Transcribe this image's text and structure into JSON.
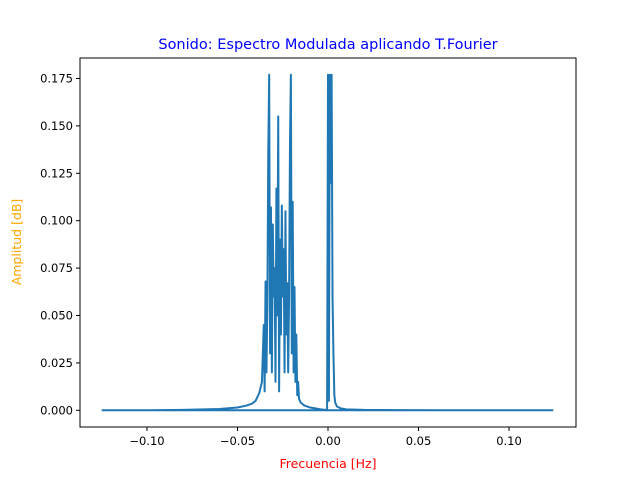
{
  "chart_data": {
    "type": "line",
    "title": "Sonido: Espectro Modulada aplicando T.Fourier",
    "title_color": "#0000ff",
    "xlabel": "Frecuencia [Hz]",
    "xlabel_color": "#ff0000",
    "ylabel": "Amplitud [dB]",
    "ylabel_color": "#ffa500",
    "line_color": "#1f77b4",
    "grid": false,
    "xlim": [
      -0.137,
      0.137
    ],
    "ylim": [
      -0.0088,
      0.1858
    ],
    "x_ticks": [
      -0.1,
      -0.05,
      0.0,
      0.05,
      0.1
    ],
    "x_tick_labels": [
      "−0.10",
      "−0.05",
      "0.00",
      "0.05",
      "0.10"
    ],
    "y_ticks": [
      0.0,
      0.025,
      0.05,
      0.075,
      0.1,
      0.125,
      0.15,
      0.175
    ],
    "y_tick_labels": [
      "0.000",
      "0.025",
      "0.050",
      "0.075",
      "0.100",
      "0.125",
      "0.150",
      "0.175"
    ],
    "series": [
      {
        "x": [
          -0.125,
          -0.1,
          -0.08,
          -0.06,
          -0.05,
          -0.045,
          -0.042,
          -0.04,
          -0.038,
          -0.0365,
          -0.0355,
          -0.035,
          -0.0345,
          -0.034,
          -0.0335,
          -0.033,
          -0.0325,
          -0.032,
          -0.0315,
          -0.031,
          -0.0305,
          -0.03,
          -0.0295,
          -0.029,
          -0.0285,
          -0.028,
          -0.0275,
          -0.027,
          -0.0265,
          -0.026,
          -0.0255,
          -0.025,
          -0.0245,
          -0.024,
          -0.0235,
          -0.023,
          -0.0225,
          -0.022,
          -0.0215,
          -0.021,
          -0.0205,
          -0.02,
          -0.0195,
          -0.019,
          -0.0185,
          -0.018,
          -0.0175,
          -0.017,
          -0.0165,
          -0.016,
          -0.015,
          -0.013,
          -0.01,
          -0.007,
          -0.004,
          -0.002,
          -0.001,
          -0.0005,
          0.0,
          0.0005,
          0.001,
          0.0015,
          0.002,
          0.0025,
          0.003,
          0.0035,
          0.004,
          0.005,
          0.007,
          0.01,
          0.02,
          0.04,
          0.07,
          0.1,
          0.124,
          0.124,
          0.0005,
          -0.125
        ],
        "y": [
          0.0,
          0.0,
          0.0002,
          0.0007,
          0.0015,
          0.0025,
          0.0035,
          0.005,
          0.009,
          0.015,
          0.045,
          0.01,
          0.068,
          0.02,
          0.055,
          0.135,
          0.177,
          0.03,
          0.107,
          0.02,
          0.098,
          0.06,
          0.075,
          0.015,
          0.117,
          0.05,
          0.155,
          0.01,
          0.09,
          0.04,
          0.108,
          0.06,
          0.085,
          0.02,
          0.105,
          0.04,
          0.067,
          0.02,
          0.06,
          0.14,
          0.177,
          0.03,
          0.11,
          0.02,
          0.065,
          0.015,
          0.04,
          0.008,
          0.015,
          0.006,
          0.004,
          0.0025,
          0.0015,
          0.001,
          0.0005,
          0.0003,
          0.0002,
          0.0,
          0.177,
          0.005,
          0.177,
          0.12,
          0.177,
          0.06,
          0.03,
          0.008,
          0.004,
          0.002,
          0.001,
          0.0005,
          0.0002,
          0.0001,
          0.0,
          0.0,
          0.0,
          0.0,
          0.0,
          0.0
        ]
      }
    ]
  }
}
